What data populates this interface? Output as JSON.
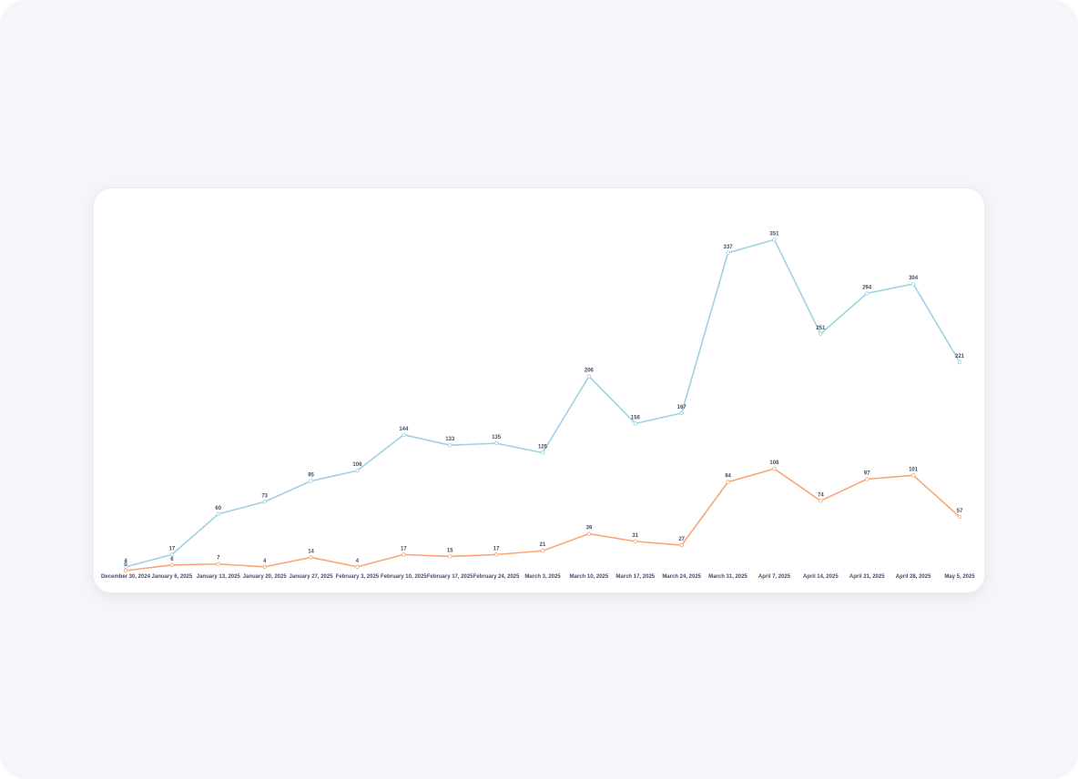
{
  "chart_data": {
    "type": "line",
    "categories": [
      "December 30, 2024",
      "January 6, 2025",
      "January 13, 2025",
      "January 20, 2025",
      "January 27, 2025",
      "February 3, 2025",
      "February 10, 2025",
      "February 17, 2025",
      "February 24, 2025",
      "March 3, 2025",
      "March 10, 2025",
      "March 17, 2025",
      "March 24, 2025",
      "March 31, 2025",
      "April 7, 2025",
      "April 14, 2025",
      "April 21, 2025",
      "April 28, 2025",
      "May 5, 2025"
    ],
    "series": [
      {
        "color": "#9fd2e3",
        "values": [
          4,
          17,
          60,
          73,
          95,
          106,
          144,
          133,
          135,
          125,
          206,
          156,
          167,
          337,
          351,
          251,
          294,
          304,
          221
        ]
      },
      {
        "color": "#f7a677",
        "values": [
          0,
          6,
          7,
          4,
          14,
          4,
          17,
          15,
          17,
          21,
          39,
          31,
          27,
          94,
          108,
          74,
          97,
          101,
          57
        ]
      }
    ],
    "ylim": [
      0,
      360
    ]
  }
}
